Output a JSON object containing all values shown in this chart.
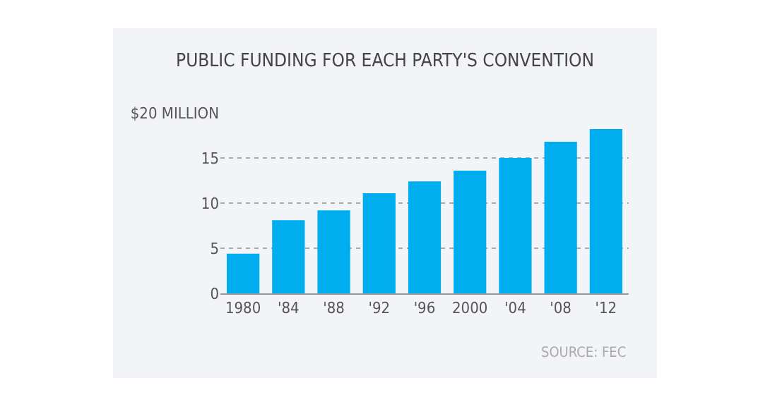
{
  "chart_data": {
    "type": "bar",
    "title": "PUBLIC FUNDING FOR EACH PARTY'S CONVENTION",
    "categories": [
      "1980",
      "'84",
      "'88",
      "'92",
      "'96",
      "2000",
      "'04",
      "'08",
      "'12"
    ],
    "values": [
      4.4,
      8.1,
      9.2,
      11.1,
      12.4,
      13.6,
      15.0,
      16.8,
      18.2
    ],
    "color": "#00aeef",
    "ylim": [
      0,
      20
    ],
    "yticks": [
      0,
      5,
      10,
      15,
      {
        "value": 20,
        "label": "$20 MILLION"
      }
    ],
    "grid": "y",
    "annotations": [
      "SOURCE: FEC"
    ]
  }
}
